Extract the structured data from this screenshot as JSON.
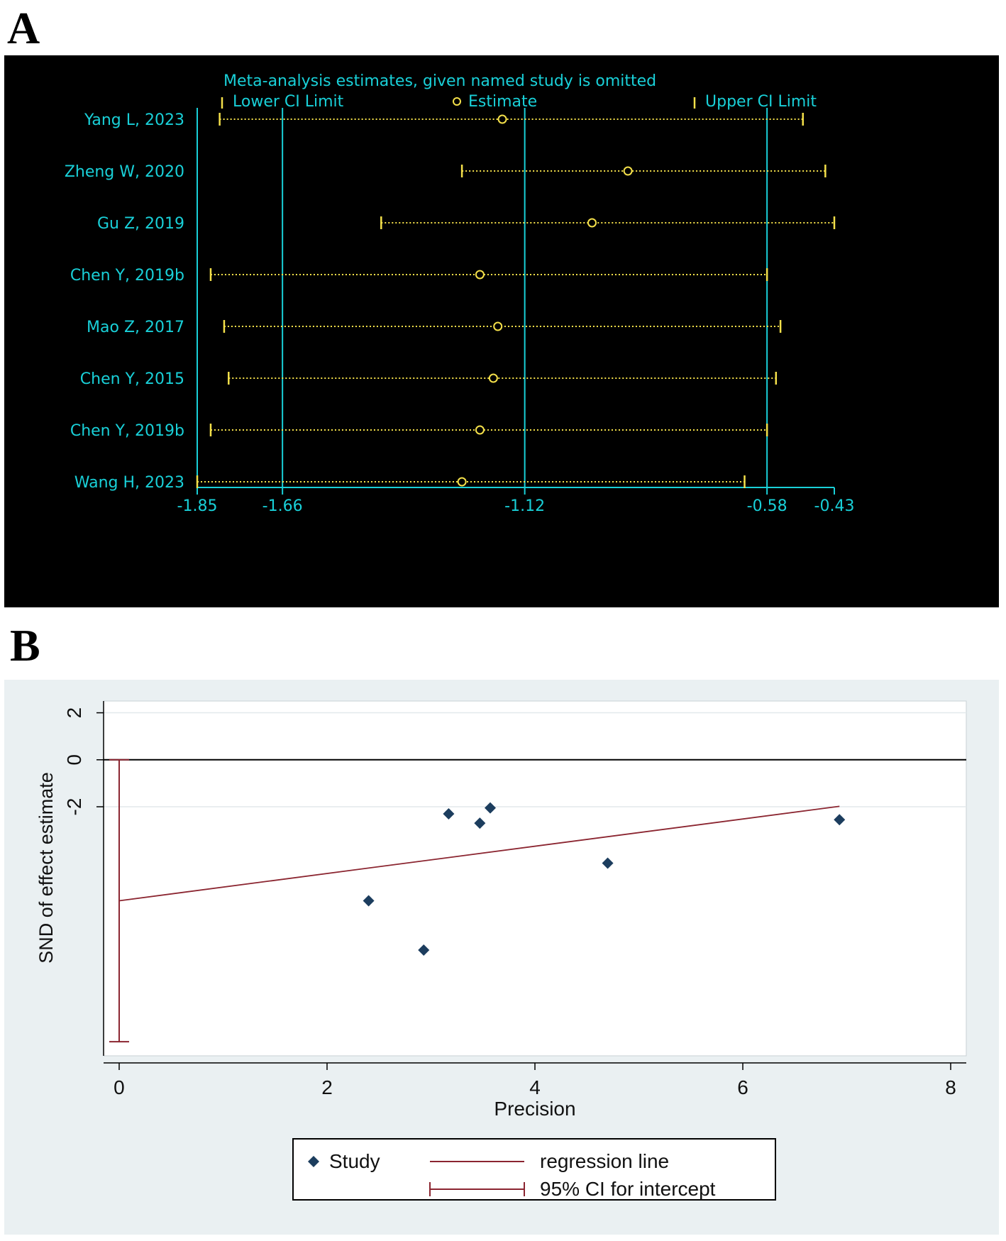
{
  "panel_labels": [
    "A",
    "B"
  ],
  "colors": {
    "panel_a_bg": "#000000",
    "cyan": "#19d0d8",
    "yellow": "#f4e04a",
    "panel_b_bg": "#eaf0f2",
    "plot_bg": "#ffffff",
    "marker": "#1c3d5e",
    "regression": "#8b2530"
  },
  "chart_data": [
    {
      "type": "forest",
      "title": "Meta-analysis estimates, given named study is omitted",
      "legend": {
        "lower": "Lower CI Limit",
        "estimate": "Estimate",
        "upper": "Upper CI Limit"
      },
      "xticks": [
        "-1.85",
        "-1.66",
        "-1.12",
        "-0.58",
        "-0.43"
      ],
      "xtick_values": [
        -1.85,
        -1.66,
        -1.12,
        -0.58,
        -0.43
      ],
      "reference_lines": [
        -1.85,
        -1.66,
        -1.12,
        -0.58
      ],
      "xlim": [
        -1.85,
        -0.43
      ],
      "studies": [
        {
          "label": "Yang L, 2023",
          "lower": -1.8,
          "estimate": -1.17,
          "upper": -0.5
        },
        {
          "label": "Zheng W, 2020",
          "lower": -1.26,
          "estimate": -0.89,
          "upper": -0.45
        },
        {
          "label": "Gu Z, 2019",
          "lower": -1.44,
          "estimate": -0.97,
          "upper": -0.43
        },
        {
          "label": "Chen Y, 2019b",
          "lower": -1.82,
          "estimate": -1.22,
          "upper": -0.58
        },
        {
          "label": "Mao Z, 2017",
          "lower": -1.79,
          "estimate": -1.18,
          "upper": -0.55
        },
        {
          "label": "Chen Y, 2015",
          "lower": -1.78,
          "estimate": -1.19,
          "upper": -0.56
        },
        {
          "label": "Chen Y, 2019b",
          "lower": -1.82,
          "estimate": -1.22,
          "upper": -0.58
        },
        {
          "label": "Wang H, 2023",
          "lower": -1.85,
          "estimate": -1.26,
          "upper": -0.63
        }
      ]
    },
    {
      "type": "scatter",
      "xlabel": "Precision",
      "ylabel": "SND of effect estimate",
      "xticks": [
        "0",
        "2",
        "4",
        "6",
        "8"
      ],
      "xtick_values": [
        0,
        2,
        4,
        6,
        8
      ],
      "yticks": [
        "2",
        "0",
        "-2"
      ],
      "ytick_values": [
        2,
        0,
        -2
      ],
      "xlim": [
        -0.15,
        8.15
      ],
      "ylim": [
        -12.6,
        2.5
      ],
      "points": [
        {
          "x": 2.4,
          "y": -6.0
        },
        {
          "x": 2.93,
          "y": -8.1
        },
        {
          "x": 3.17,
          "y": -2.3
        },
        {
          "x": 3.47,
          "y": -2.7
        },
        {
          "x": 3.57,
          "y": -2.05
        },
        {
          "x": 4.7,
          "y": -4.4
        },
        {
          "x": 6.93,
          "y": -2.55
        }
      ],
      "regression": {
        "intercept": -6.0,
        "slope": 0.58,
        "x_range": [
          0,
          6.93
        ]
      },
      "ci_intercept": [
        -12.0,
        0.0
      ],
      "legend": {
        "study": "Study",
        "regression": "regression line",
        "ci": "95% CI for intercept"
      }
    }
  ]
}
